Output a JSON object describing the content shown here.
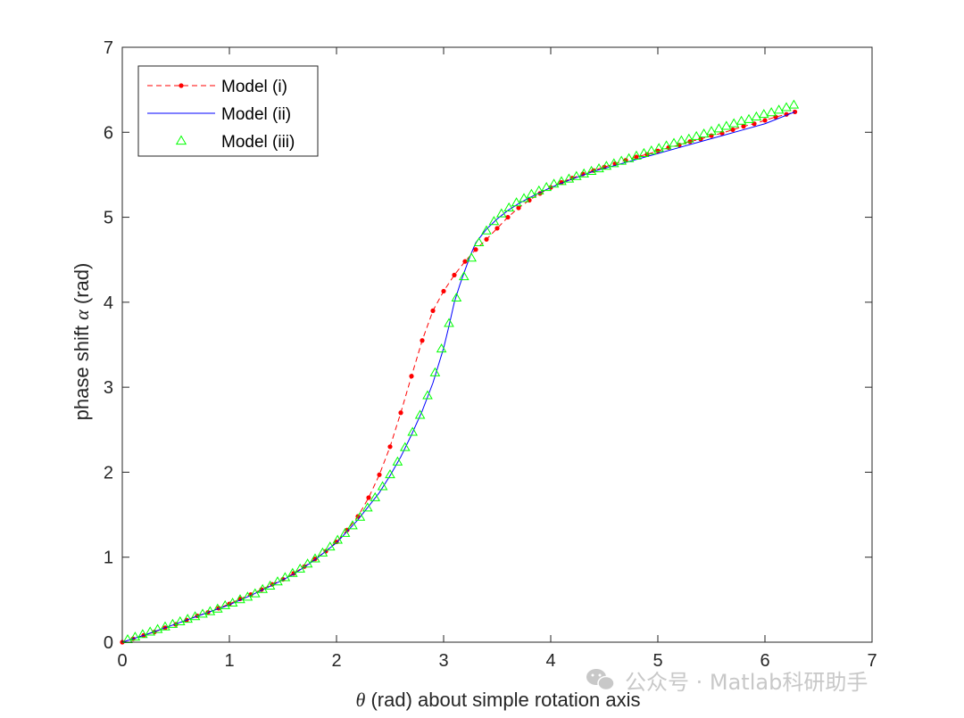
{
  "chart_data": {
    "type": "line",
    "xlabel_symbol": "θ",
    "xlabel_text": " (rad) about simple rotation axis",
    "ylabel_text": "phase shift ",
    "ylabel_symbol": "α",
    "ylabel_unit": " (rad)",
    "xlim": [
      0,
      7
    ],
    "ylim": [
      0,
      7
    ],
    "xticks": [
      "0",
      "1",
      "2",
      "3",
      "4",
      "5",
      "6",
      "7"
    ],
    "yticks": [
      "0",
      "1",
      "2",
      "3",
      "4",
      "5",
      "6",
      "7"
    ],
    "grid": false,
    "legend_position": "top-left",
    "series": [
      {
        "name": "Model (i)",
        "color": "#ff0000",
        "style": "dashed-dot-marker",
        "x": [
          0.0,
          0.1,
          0.2,
          0.3,
          0.4,
          0.5,
          0.6,
          0.7,
          0.8,
          0.9,
          1.0,
          1.1,
          1.2,
          1.3,
          1.4,
          1.5,
          1.6,
          1.7,
          1.8,
          1.9,
          2.0,
          2.1,
          2.2,
          2.3,
          2.4,
          2.5,
          2.6,
          2.7,
          2.8,
          2.9,
          3.0,
          3.1,
          3.2,
          3.3,
          3.4,
          3.5,
          3.6,
          3.7,
          3.8,
          3.9,
          4.0,
          4.1,
          4.2,
          4.3,
          4.4,
          4.5,
          4.6,
          4.7,
          4.8,
          4.9,
          5.0,
          5.1,
          5.2,
          5.3,
          5.4,
          5.5,
          5.6,
          5.7,
          5.8,
          5.9,
          6.0,
          6.1,
          6.2,
          6.28
        ],
        "y": [
          0.0,
          0.04,
          0.08,
          0.12,
          0.17,
          0.21,
          0.26,
          0.31,
          0.35,
          0.4,
          0.45,
          0.51,
          0.56,
          0.62,
          0.68,
          0.74,
          0.81,
          0.89,
          0.98,
          1.07,
          1.18,
          1.32,
          1.48,
          1.7,
          1.97,
          2.3,
          2.7,
          3.13,
          3.55,
          3.9,
          4.13,
          4.32,
          4.48,
          4.62,
          4.74,
          4.87,
          5.0,
          5.11,
          5.2,
          5.28,
          5.35,
          5.41,
          5.46,
          5.51,
          5.55,
          5.59,
          5.63,
          5.67,
          5.71,
          5.74,
          5.78,
          5.82,
          5.85,
          5.89,
          5.92,
          5.96,
          5.99,
          6.03,
          6.07,
          6.1,
          6.14,
          6.18,
          6.21,
          6.24
        ]
      },
      {
        "name": "Model (ii)",
        "color": "#0000ff",
        "style": "solid",
        "x": [
          0.0,
          0.2,
          0.4,
          0.6,
          0.8,
          1.0,
          1.2,
          1.4,
          1.6,
          1.8,
          2.0,
          2.2,
          2.4,
          2.5,
          2.6,
          2.7,
          2.8,
          2.9,
          3.0,
          3.05,
          3.1,
          3.15,
          3.2,
          3.25,
          3.3,
          3.4,
          3.5,
          3.6,
          3.7,
          3.8,
          4.0,
          4.2,
          4.4,
          4.6,
          4.8,
          5.0,
          5.2,
          5.4,
          5.6,
          5.8,
          6.0,
          6.28
        ],
        "y": [
          0.0,
          0.08,
          0.17,
          0.26,
          0.35,
          0.44,
          0.55,
          0.67,
          0.8,
          0.97,
          1.17,
          1.44,
          1.76,
          1.96,
          2.18,
          2.44,
          2.72,
          3.05,
          3.46,
          3.72,
          4.0,
          4.2,
          4.38,
          4.55,
          4.7,
          4.86,
          4.98,
          5.08,
          5.16,
          5.23,
          5.35,
          5.45,
          5.54,
          5.61,
          5.68,
          5.75,
          5.82,
          5.89,
          5.96,
          6.03,
          6.1,
          6.24
        ]
      },
      {
        "name": "Model (iii)",
        "color": "#00ff00",
        "style": "triangle-marker",
        "x": [
          0.05,
          0.12,
          0.19,
          0.26,
          0.33,
          0.4,
          0.47,
          0.54,
          0.61,
          0.68,
          0.75,
          0.82,
          0.89,
          0.96,
          1.03,
          1.1,
          1.17,
          1.24,
          1.31,
          1.38,
          1.45,
          1.52,
          1.59,
          1.66,
          1.73,
          1.8,
          1.87,
          1.94,
          2.01,
          2.08,
          2.15,
          2.22,
          2.29,
          2.36,
          2.43,
          2.5,
          2.57,
          2.64,
          2.71,
          2.78,
          2.85,
          2.92,
          2.98,
          3.05,
          3.12,
          3.19,
          3.26,
          3.33,
          3.4,
          3.47,
          3.54,
          3.61,
          3.68,
          3.75,
          3.82,
          3.89,
          3.96,
          4.03,
          4.1,
          4.17,
          4.24,
          4.31,
          4.38,
          4.45,
          4.52,
          4.59,
          4.66,
          4.73,
          4.8,
          4.87,
          4.94,
          5.01,
          5.08,
          5.15,
          5.22,
          5.29,
          5.36,
          5.43,
          5.5,
          5.57,
          5.64,
          5.71,
          5.78,
          5.85,
          5.92,
          5.99,
          6.06,
          6.13,
          6.2,
          6.27
        ],
        "y": [
          0.03,
          0.06,
          0.09,
          0.12,
          0.15,
          0.18,
          0.21,
          0.24,
          0.27,
          0.3,
          0.33,
          0.36,
          0.39,
          0.43,
          0.46,
          0.5,
          0.53,
          0.57,
          0.62,
          0.66,
          0.71,
          0.76,
          0.81,
          0.86,
          0.92,
          0.98,
          1.05,
          1.12,
          1.2,
          1.28,
          1.37,
          1.47,
          1.58,
          1.7,
          1.83,
          1.97,
          2.12,
          2.29,
          2.47,
          2.67,
          2.9,
          3.17,
          3.45,
          3.75,
          4.05,
          4.3,
          4.52,
          4.7,
          4.84,
          4.95,
          5.04,
          5.11,
          5.17,
          5.22,
          5.27,
          5.31,
          5.35,
          5.39,
          5.42,
          5.45,
          5.48,
          5.51,
          5.54,
          5.57,
          5.6,
          5.63,
          5.66,
          5.69,
          5.72,
          5.75,
          5.78,
          5.81,
          5.84,
          5.87,
          5.9,
          5.92,
          5.95,
          5.98,
          6.01,
          6.04,
          6.07,
          6.1,
          6.13,
          6.15,
          6.18,
          6.21,
          6.23,
          6.26,
          6.29,
          6.32
        ]
      }
    ]
  },
  "watermark": {
    "text": "公众号 · Matlab科研助手",
    "icon": "wechat-icon"
  }
}
